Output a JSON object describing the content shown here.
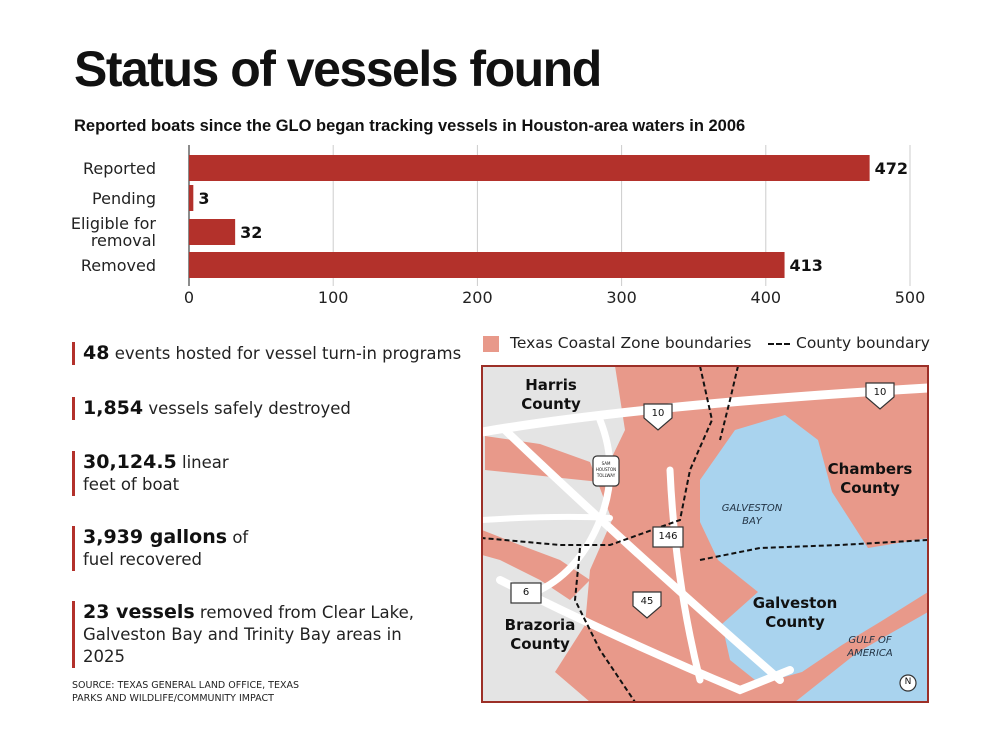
{
  "chart_data": {
    "type": "bar",
    "orientation": "horizontal",
    "title": "Status of vessels found",
    "subtitle": "Reported boats since the GLO began tracking vessels in Houston-area waters in 2006",
    "categories": [
      "Reported",
      "Pending",
      "Eligible for removal",
      "Removed"
    ],
    "values": [
      472,
      3,
      32,
      413
    ],
    "color": "#b3312b",
    "xlim": [
      0,
      500
    ],
    "xticks": [
      0,
      100,
      200,
      300,
      400,
      500
    ],
    "grid": true
  },
  "stats": [
    {
      "highlight": "48",
      "text": "events hosted for vessel turn-in programs"
    },
    {
      "highlight": "1,854",
      "text": "vessels safely destroyed"
    },
    {
      "highlight": "30,124.5",
      "text": "linear feet of boat"
    },
    {
      "highlight": "3,939 gallons",
      "text": "of fuel recovered"
    },
    {
      "highlight": "23 vessels",
      "text": "removed from Clear Lake, Galveston Bay and Trinity Bay areas in 2025"
    }
  ],
  "source": "SOURCE: TEXAS GENERAL LAND OFFICE, TEXAS PARKS AND WILDLIFE/COMMUNITY IMPACT",
  "map": {
    "legend": [
      "Texas Coastal Zone boundaries",
      "County boundary"
    ],
    "labels": [
      "Harris County",
      "Chambers County",
      "Galveston County",
      "Brazoria County",
      "GALVESTON BAY",
      "GULF OF AMERICA"
    ],
    "shields": [
      "10",
      "10",
      "146",
      "45",
      "6"
    ],
    "tollway": "SAM HOUSTON TOLLWAY",
    "compass": "N"
  }
}
